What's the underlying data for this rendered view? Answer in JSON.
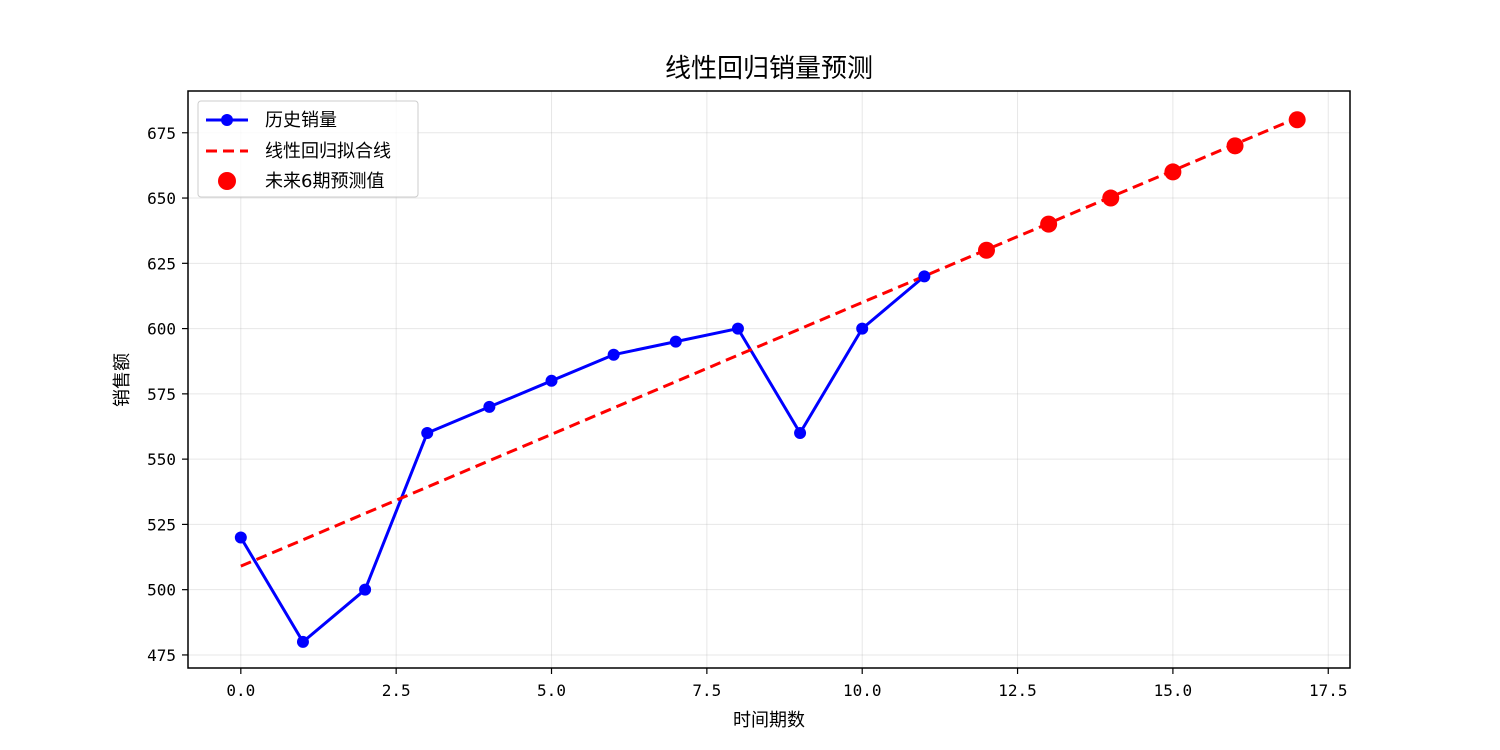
{
  "chart_data": {
    "type": "line",
    "title": "线性回归销量预测",
    "xlabel": "时间期数",
    "ylabel": "销售额",
    "xlim": [
      -0.85,
      17.85
    ],
    "ylim": [
      470,
      691
    ],
    "x_ticks": [
      0,
      2.5,
      5,
      7.5,
      10,
      12.5,
      15,
      17.5
    ],
    "x_tick_labels": [
      "0.0",
      "2.5",
      "5.0",
      "7.5",
      "10.0",
      "12.5",
      "15.0",
      "17.5"
    ],
    "y_ticks": [
      475,
      500,
      525,
      550,
      575,
      600,
      625,
      650,
      675
    ],
    "y_tick_labels": [
      "475",
      "500",
      "525",
      "550",
      "575",
      "600",
      "625",
      "650",
      "675"
    ],
    "grid": true,
    "legend_position": "top-left",
    "series": [
      {
        "name": "历史销量",
        "style": "solid-line-with-markers",
        "color": "#0000ff",
        "x": [
          0,
          1,
          2,
          3,
          4,
          5,
          6,
          7,
          8,
          9,
          10,
          11
        ],
        "y": [
          520,
          480,
          500,
          560,
          570,
          580,
          590,
          595,
          600,
          560,
          600,
          620
        ]
      },
      {
        "name": "线性回归拟合线",
        "style": "dashed-line",
        "color": "#ff0000",
        "x": [
          0,
          17
        ],
        "y": [
          509,
          680.7
        ]
      },
      {
        "name": "未来6期预测值",
        "style": "markers",
        "color": "#ff0000",
        "x": [
          12,
          13,
          14,
          15,
          16,
          17
        ],
        "y": [
          630,
          640,
          650,
          660,
          670,
          680
        ]
      }
    ]
  }
}
